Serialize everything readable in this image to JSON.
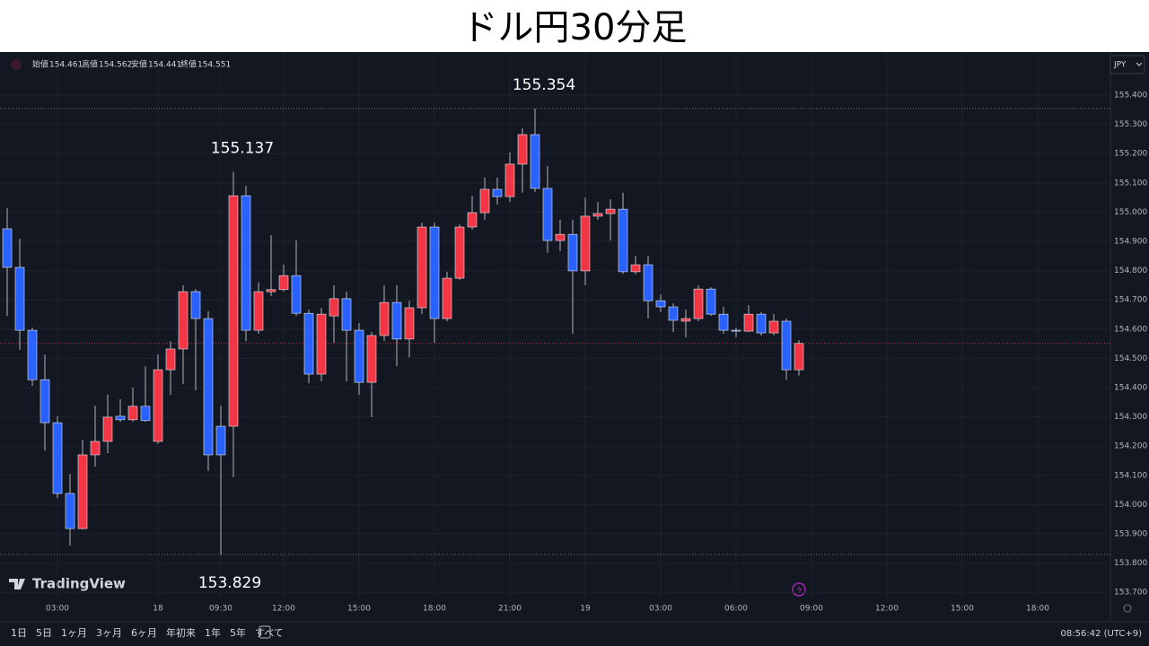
{
  "title": "ドル円30分足",
  "header": {
    "ohlc": [
      {
        "label": "始値",
        "value": "154.461"
      },
      {
        "label": "高値",
        "value": "154.562"
      },
      {
        "label": "安値",
        "value": "154.441"
      },
      {
        "label": "終値",
        "value": "154.551"
      }
    ]
  },
  "currency": "JPY",
  "brand": "TradingView",
  "toolbar": {
    "ranges": [
      "1日",
      "5日",
      "1ヶ月",
      "3ヶ月",
      "6ヶ月",
      "年初来",
      "1年",
      "5年",
      "すべて"
    ],
    "time": "08:56:42 (UTC+9)"
  },
  "chart_data": {
    "type": "candlestick",
    "up_color": "#f23645",
    "down_color": "#2962ff",
    "categories": [
      null,
      null,
      null,
      null,
      "03:00",
      null,
      null,
      null,
      null,
      null,
      null,
      null,
      "18",
      null,
      null,
      null,
      null,
      "09:30",
      null,
      null,
      null,
      null,
      "12:00",
      null,
      null,
      null,
      null,
      null,
      "15:00",
      null,
      null,
      null,
      null,
      null,
      "18:00",
      null,
      null,
      null,
      null,
      null,
      "21:00",
      null,
      null,
      null,
      null,
      null,
      "19",
      null,
      null,
      null,
      null,
      null,
      "03:00",
      null,
      null,
      null,
      null,
      null,
      "06:00",
      null,
      null,
      null,
      null,
      null,
      "09:00",
      null,
      null,
      null,
      null,
      null,
      "12:00",
      null,
      null,
      null,
      null,
      null,
      "15:00",
      null,
      null,
      null,
      null,
      null,
      "18:00",
      null,
      null,
      null,
      null,
      null
    ],
    "open": [
      154.943,
      154.811,
      154.596,
      154.427,
      154.28,
      154.038,
      153.918,
      154.17,
      154.216,
      154.302,
      154.29,
      154.336,
      154.216,
      154.461,
      154.532,
      154.728,
      154.636,
      154.268,
      154.268,
      155.056,
      154.596,
      154.728,
      154.735,
      154.783,
      154.654,
      154.446,
      154.645,
      154.704,
      154.596,
      154.418,
      154.578,
      154.691,
      154.566,
      154.673,
      154.949,
      154.636,
      154.774,
      154.949,
      154.998,
      155.078,
      155.053,
      155.164,
      155.265,
      155.081,
      154.903,
      154.924,
      154.799,
      154.986,
      154.995,
      155.01,
      154.796,
      154.82,
      154.697,
      154.676,
      154.627,
      154.636,
      154.737,
      154.651,
      154.596,
      154.593,
      154.651,
      154.587,
      154.627,
      154.461,
      null,
      null,
      null,
      null,
      null,
      null,
      null,
      null,
      null,
      null,
      null,
      null,
      null,
      null,
      null,
      null,
      null,
      null,
      null,
      null,
      null,
      null,
      null,
      null
    ],
    "high": [
      155.013,
      154.909,
      154.605,
      154.513,
      154.302,
      154.105,
      154.222,
      154.338,
      154.375,
      154.36,
      154.4,
      154.473,
      154.513,
      154.559,
      154.75,
      154.737,
      154.661,
      154.338,
      155.137,
      155.09,
      154.76,
      154.921,
      154.82,
      154.903,
      154.667,
      154.673,
      154.75,
      154.728,
      154.621,
      154.59,
      154.75,
      154.75,
      154.697,
      154.964,
      154.964,
      154.796,
      154.958,
      155.056,
      155.118,
      155.118,
      155.204,
      155.286,
      155.354,
      155.158,
      154.974,
      154.974,
      155.05,
      155.035,
      155.044,
      155.066,
      154.851,
      154.851,
      154.719,
      154.688,
      154.667,
      154.75,
      154.743,
      154.676,
      154.605,
      154.682,
      154.658,
      154.651,
      154.636,
      154.562,
      null,
      null,
      null,
      null,
      null,
      null,
      null,
      null,
      null,
      null,
      null,
      null,
      null,
      null,
      null,
      null,
      null,
      null,
      null,
      null,
      null,
      null,
      null,
      null
    ],
    "low": [
      154.645,
      154.529,
      154.406,
      154.185,
      154.022,
      153.86,
      153.915,
      154.13,
      154.176,
      154.283,
      154.283,
      154.283,
      154.207,
      154.375,
      154.412,
      154.391,
      154.115,
      153.829,
      154.094,
      154.559,
      154.584,
      154.713,
      154.728,
      154.645,
      154.415,
      154.421,
      154.553,
      154.421,
      154.375,
      154.299,
      154.559,
      154.473,
      154.504,
      154.651,
      154.553,
      154.627,
      154.768,
      154.94,
      154.973,
      155.026,
      155.035,
      155.066,
      155.069,
      154.86,
      154.866,
      154.584,
      154.75,
      154.974,
      154.903,
      154.789,
      154.787,
      154.636,
      154.658,
      154.59,
      154.572,
      154.627,
      154.645,
      154.584,
      154.572,
      154.59,
      154.578,
      154.578,
      154.427,
      154.441,
      null,
      null,
      null,
      null,
      null,
      null,
      null,
      null,
      null,
      null,
      null,
      null,
      null,
      null,
      null,
      null,
      null,
      null,
      null,
      null,
      null,
      null,
      null,
      null
    ],
    "close": [
      154.811,
      154.596,
      154.427,
      154.28,
      154.038,
      153.918,
      154.17,
      154.216,
      154.299,
      154.29,
      154.336,
      154.287,
      154.461,
      154.532,
      154.728,
      154.636,
      154.17,
      154.17,
      155.056,
      154.596,
      154.728,
      154.735,
      154.783,
      154.654,
      154.446,
      154.651,
      154.704,
      154.596,
      154.418,
      154.578,
      154.691,
      154.566,
      154.673,
      154.949,
      154.636,
      154.774,
      154.949,
      154.998,
      155.078,
      155.053,
      155.164,
      155.265,
      155.081,
      154.903,
      154.924,
      154.799,
      154.986,
      154.995,
      155.01,
      154.796,
      154.82,
      154.697,
      154.676,
      154.63,
      154.636,
      154.737,
      154.651,
      154.596,
      154.593,
      154.651,
      154.587,
      154.627,
      154.461,
      154.551,
      null,
      null,
      null,
      null,
      null,
      null,
      null,
      null,
      null,
      null,
      null,
      null,
      null,
      null,
      null,
      null,
      null,
      null,
      null,
      null,
      null,
      null,
      null,
      null
    ],
    "annotations": [
      {
        "value": 155.354,
        "label": "155.354"
      },
      {
        "value": 155.137,
        "label": "155.137"
      },
      {
        "value": 153.829,
        "label": "153.829"
      }
    ],
    "ylim": [
      153.676,
      155.535
    ],
    "yticks": [
      {
        "value": 155.4,
        "label": "155.400"
      },
      {
        "value": 155.3,
        "label": "155.300"
      },
      {
        "value": 155.2,
        "label": "155.200"
      },
      {
        "value": 155.1,
        "label": "155.100"
      },
      {
        "value": 155.0,
        "label": "155.000"
      },
      {
        "value": 154.9,
        "label": "154.900"
      },
      {
        "value": 154.8,
        "label": "154.800"
      },
      {
        "value": 154.7,
        "label": "154.700"
      },
      {
        "value": 154.6,
        "label": "154.600"
      },
      {
        "value": 154.5,
        "label": "154.500"
      },
      {
        "value": 154.4,
        "label": "154.400"
      },
      {
        "value": 154.3,
        "label": "154.300"
      },
      {
        "value": 154.2,
        "label": "154.200"
      },
      {
        "value": 154.1,
        "label": "154.100"
      },
      {
        "value": 154.0,
        "label": "154.000"
      },
      {
        "value": 153.9,
        "label": "153.900"
      },
      {
        "value": 153.8,
        "label": "153.800"
      },
      {
        "value": 153.7,
        "label": "153.700"
      }
    ],
    "grid": true
  }
}
